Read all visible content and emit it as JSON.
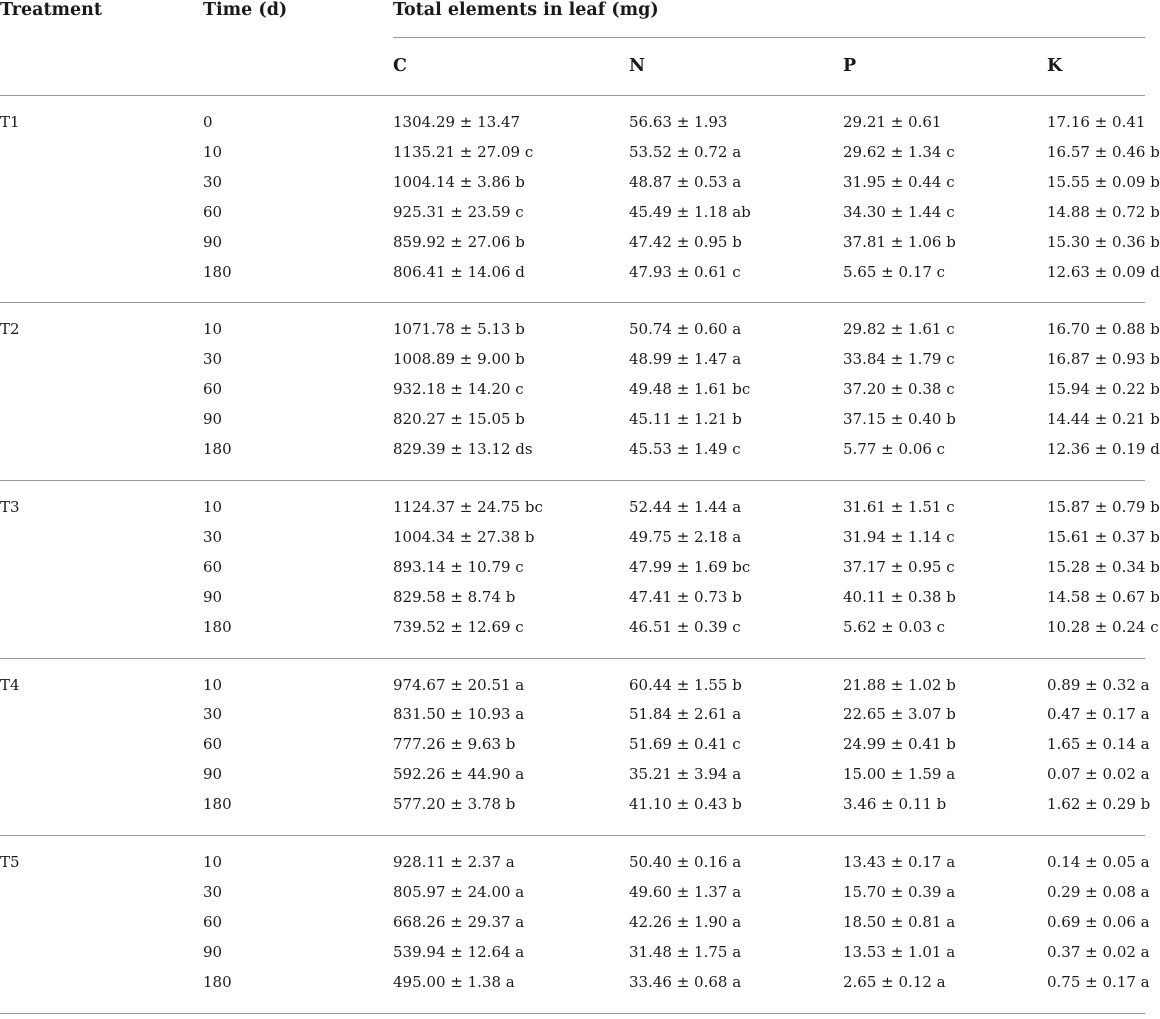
{
  "header": {
    "treatment": "Treatment",
    "time": "Time (d)",
    "total": "Total elements in leaf (mg)",
    "c": "C",
    "n": "N",
    "p": "P",
    "k": "K"
  },
  "groups": [
    {
      "treatment": "T1",
      "rows": [
        {
          "time": "0",
          "c": "1304.29 ± 13.47",
          "n": "56.63 ± 1.93",
          "p": "29.21 ± 0.61",
          "k": "17.16 ± 0.41"
        },
        {
          "time": "10",
          "c": "1135.21 ± 27.09 c",
          "n": "53.52 ± 0.72 a",
          "p": "29.62 ± 1.34 c",
          "k": "16.57 ± 0.46 b"
        },
        {
          "time": "30",
          "c": "1004.14 ± 3.86 b",
          "n": "48.87 ± 0.53 a",
          "p": "31.95 ± 0.44 c",
          "k": "15.55 ± 0.09 b"
        },
        {
          "time": "60",
          "c": "925.31 ± 23.59 c",
          "n": "45.49 ± 1.18 ab",
          "p": "34.30 ± 1.44 c",
          "k": "14.88 ± 0.72 b"
        },
        {
          "time": "90",
          "c": "859.92 ± 27.06 b",
          "n": "47.42 ± 0.95 b",
          "p": "37.81 ± 1.06 b",
          "k": "15.30 ± 0.36 b"
        },
        {
          "time": "180",
          "c": "806.41 ± 14.06 d",
          "n": "47.93 ± 0.61 c",
          "p": "5.65 ± 0.17 c",
          "k": "12.63 ± 0.09 d"
        }
      ]
    },
    {
      "treatment": "T2",
      "rows": [
        {
          "time": "10",
          "c": "1071.78 ± 5.13 b",
          "n": "50.74 ± 0.60 a",
          "p": "29.82 ± 1.61 c",
          "k": "16.70 ± 0.88 b"
        },
        {
          "time": "30",
          "c": "1008.89 ± 9.00 b",
          "n": "48.99 ± 1.47 a",
          "p": "33.84 ± 1.79 c",
          "k": "16.87 ± 0.93 b"
        },
        {
          "time": "60",
          "c": "932.18 ± 14.20 c",
          "n": "49.48 ± 1.61 bc",
          "p": "37.20 ± 0.38 c",
          "k": "15.94 ± 0.22 b"
        },
        {
          "time": "90",
          "c": "820.27 ± 15.05 b",
          "n": "45.11 ± 1.21 b",
          "p": "37.15 ± 0.40 b",
          "k": "14.44 ± 0.21 b"
        },
        {
          "time": "180",
          "c": "829.39 ± 13.12 ds",
          "n": "45.53 ± 1.49 c",
          "p": "5.77 ± 0.06 c",
          "k": "12.36 ± 0.19 d"
        }
      ]
    },
    {
      "treatment": "T3",
      "rows": [
        {
          "time": "10",
          "c": "1124.37 ± 24.75 bc",
          "n": "52.44 ± 1.44 a",
          "p": "31.61 ± 1.51 c",
          "k": "15.87 ± 0.79 b"
        },
        {
          "time": "30",
          "c": "1004.34 ± 27.38 b",
          "n": "49.75 ± 2.18 a",
          "p": "31.94 ± 1.14 c",
          "k": "15.61 ± 0.37 b"
        },
        {
          "time": "60",
          "c": "893.14 ± 10.79 c",
          "n": "47.99 ± 1.69 bc",
          "p": "37.17 ± 0.95 c",
          "k": "15.28 ± 0.34 b"
        },
        {
          "time": "90",
          "c": "829.58 ± 8.74 b",
          "n": "47.41 ± 0.73 b",
          "p": "40.11 ± 0.38 b",
          "k": "14.58 ± 0.67 b"
        },
        {
          "time": "180",
          "c": "739.52 ± 12.69 c",
          "n": "46.51 ± 0.39 c",
          "p": "5.62 ± 0.03 c",
          "k": "10.28 ± 0.24 c"
        }
      ]
    },
    {
      "treatment": "T4",
      "rows": [
        {
          "time": "10",
          "c": "974.67 ± 20.51 a",
          "n": "60.44 ± 1.55 b",
          "p": "21.88 ± 1.02 b",
          "k": "0.89 ± 0.32 a"
        },
        {
          "time": "30",
          "c": "831.50 ± 10.93 a",
          "n": "51.84 ± 2.61 a",
          "p": "22.65 ± 3.07 b",
          "k": "0.47 ± 0.17 a"
        },
        {
          "time": "60",
          "c": "777.26 ± 9.63 b",
          "n": "51.69 ± 0.41 c",
          "p": "24.99 ± 0.41 b",
          "k": "1.65 ± 0.14 a"
        },
        {
          "time": "90",
          "c": "592.26 ± 44.90 a",
          "n": "35.21 ± 3.94 a",
          "p": "15.00 ± 1.59 a",
          "k": "0.07 ± 0.02 a"
        },
        {
          "time": "180",
          "c": "577.20 ± 3.78 b",
          "n": "41.10 ± 0.43 b",
          "p": "3.46 ± 0.11 b",
          "k": "1.62 ± 0.29 b"
        }
      ]
    },
    {
      "treatment": "T5",
      "rows": [
        {
          "time": "10",
          "c": "928.11 ± 2.37 a",
          "n": "50.40 ± 0.16 a",
          "p": "13.43 ± 0.17 a",
          "k": "0.14 ± 0.05 a"
        },
        {
          "time": "30",
          "c": "805.97 ± 24.00 a",
          "n": "49.60 ± 1.37 a",
          "p": "15.70 ± 0.39 a",
          "k": "0.29 ± 0.08 a"
        },
        {
          "time": "60",
          "c": "668.26 ± 29.37 a",
          "n": "42.26 ± 1.90 a",
          "p": "18.50 ± 0.81 a",
          "k": "0.69 ± 0.06 a"
        },
        {
          "time": "90",
          "c": "539.94 ± 12.64 a",
          "n": "31.48 ± 1.75 a",
          "p": "13.53 ± 1.01 a",
          "k": "0.37 ± 0.02 a"
        },
        {
          "time": "180",
          "c": "495.00 ± 1.38 a",
          "n": "33.46 ± 0.68 a",
          "p": "2.65 ± 0.12 a",
          "k": "0.75 ± 0.17 a"
        }
      ]
    }
  ]
}
